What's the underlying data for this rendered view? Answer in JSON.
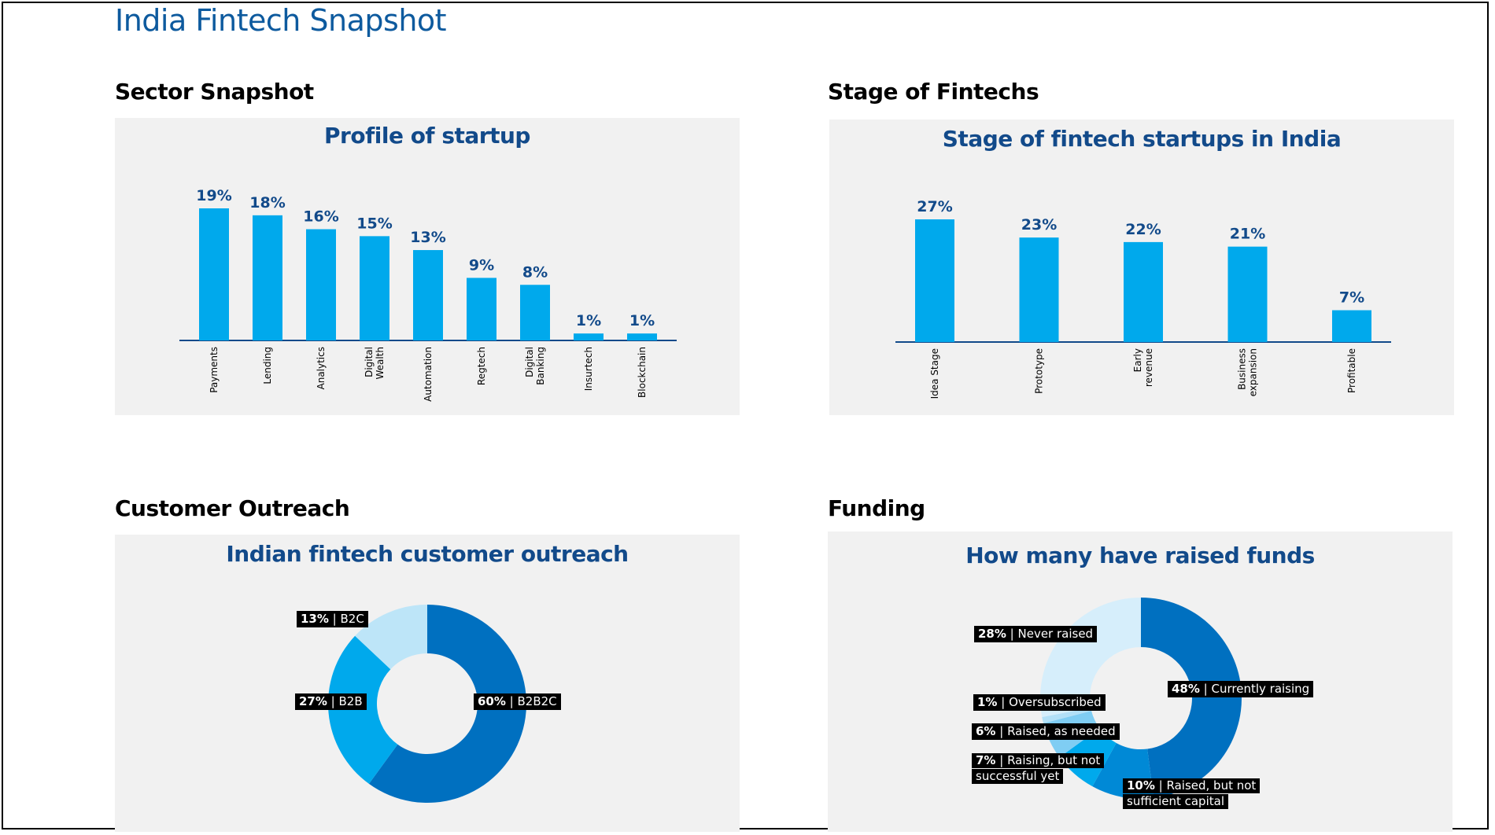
{
  "page": {
    "title": "India Fintech Snapshot"
  },
  "sections": {
    "sector": "Sector Snapshot",
    "stage": "Stage of Fintechs",
    "customer": "Customer Outreach",
    "funding": "Funding"
  },
  "colors": {
    "title": "#0d5a9e",
    "chart_title": "#124a8a",
    "bar": "#00a9ec",
    "panel": "#f1f1f1",
    "donut_dark": "#0070c0",
    "donut_mid": "#00a9ec",
    "donut_light": "#bde5f8",
    "donut_lightest": "#d6eefb"
  },
  "chart_data": [
    {
      "type": "bar",
      "title": "Profile of startup",
      "categories": [
        [
          "Payments"
        ],
        [
          "Lending"
        ],
        [
          "Analytics"
        ],
        [
          "Digital",
          "Wealth"
        ],
        [
          "Automation"
        ],
        [
          "Regtech"
        ],
        [
          "Digital",
          "Banking"
        ],
        [
          "Insurtech"
        ],
        [
          "Blockchain"
        ]
      ],
      "values": [
        19,
        18,
        16,
        15,
        13,
        9,
        8,
        1,
        1
      ],
      "value_labels": [
        "19%",
        "18%",
        "16%",
        "15%",
        "13%",
        "9%",
        "8%",
        "1%",
        "1%"
      ],
      "ylim": [
        0,
        19
      ],
      "grid": false
    },
    {
      "type": "bar",
      "title": "Stage of fintech startups in India",
      "categories": [
        [
          "Idea Stage"
        ],
        [
          "Prototype"
        ],
        [
          "Early",
          "revenue"
        ],
        [
          "Business",
          "expansion"
        ],
        [
          "Profitable"
        ]
      ],
      "values": [
        27,
        23,
        22,
        21,
        7
      ],
      "value_labels": [
        "27%",
        "23%",
        "22%",
        "21%",
        "7%"
      ],
      "ylim": [
        0,
        27
      ],
      "grid": false
    },
    {
      "type": "pie",
      "title": "Indian fintech customer outreach",
      "slices": [
        {
          "pct": "60%",
          "label": "B2B2C",
          "value": 60,
          "color": "#0070c0"
        },
        {
          "pct": "27%",
          "label": "B2B",
          "value": 27,
          "color": "#00a9ec"
        },
        {
          "pct": "13%",
          "label": "B2C",
          "value": 13,
          "color": "#bde5f8"
        }
      ]
    },
    {
      "type": "pie",
      "title": "How many have raised funds",
      "slices": [
        {
          "pct": "48%",
          "label": "Currently raising",
          "lines": [
            "Currently raising"
          ],
          "value": 48,
          "color": "#0070c0"
        },
        {
          "pct": "10%",
          "label": "Raised, but not sufficient capital",
          "lines": [
            "Raised, but not",
            "sufficient capital"
          ],
          "value": 10,
          "color": "#0089d6"
        },
        {
          "pct": "7%",
          "label": "Raising, but not successful yet",
          "lines": [
            "Raising, but not",
            "successful yet"
          ],
          "value": 7,
          "color": "#00a9ec"
        },
        {
          "pct": "6%",
          "label": "Raised, as needed",
          "lines": [
            "Raised, as needed"
          ],
          "value": 6,
          "color": "#7fcdf3"
        },
        {
          "pct": "1%",
          "label": "Oversubscribed",
          "lines": [
            "Oversubscribed"
          ],
          "value": 1,
          "color": "#b2e0f7"
        },
        {
          "pct": "28%",
          "label": "Never raised",
          "lines": [
            "Never raised"
          ],
          "value": 28,
          "color": "#d6eefb"
        }
      ]
    }
  ]
}
